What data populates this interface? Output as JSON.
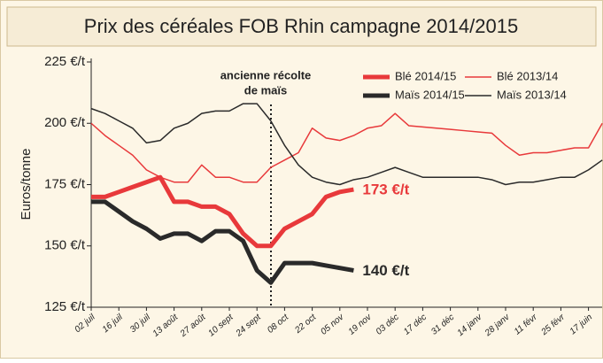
{
  "chart_data": {
    "type": "line",
    "title": "Prix des céréales FOB Rhin campagne 2014/2015",
    "y_label": "Euros/tonne",
    "annotation": [
      "ancienne récolte",
      "de maïs"
    ],
    "categories": [
      "02 juil",
      null,
      "16 juil",
      null,
      "30 juil",
      null,
      "13 août",
      null,
      "27 août",
      null,
      "10 sept",
      null,
      "24 sept",
      null,
      "08 oct",
      null,
      "22 oct",
      null,
      "05 nov",
      null,
      "19 nov",
      null,
      "03 déc",
      null,
      "17 déc",
      null,
      "31 déc",
      null,
      "14 janv",
      null,
      "28 janv",
      null,
      "11 févr",
      null,
      "25 févr",
      null,
      "17 juin",
      null
    ],
    "ylim": [
      125,
      225
    ],
    "yticks": [
      {
        "value": 125,
        "label": "125 €/t"
      },
      {
        "value": 150,
        "label": "150 €/t"
      },
      {
        "value": 175,
        "label": "175 €/t"
      },
      {
        "value": 200,
        "label": "200 €/t"
      },
      {
        "value": 225,
        "label": "225 €/t"
      }
    ],
    "grid": false,
    "series": [
      {
        "name": "Blé 2014/15",
        "color": "#e8393b",
        "width": 5,
        "end_label": "173 €/t",
        "values": [
          170,
          170,
          172,
          174,
          176,
          178,
          168,
          168,
          166,
          166,
          163,
          155,
          150,
          150,
          157,
          160,
          163,
          170,
          172,
          173,
          null,
          null,
          null,
          null,
          null,
          null,
          null,
          null,
          null,
          null,
          null,
          null,
          null,
          null,
          null,
          null,
          null,
          null
        ]
      },
      {
        "name": "Blé 2013/14",
        "color": "#e8393b",
        "width": 1.5,
        "values": [
          200,
          195,
          191,
          187,
          181,
          178,
          176,
          176,
          183,
          178,
          178,
          176,
          176,
          182,
          185,
          188,
          198,
          194,
          193,
          195,
          198,
          199,
          204,
          199,
          198.5,
          198,
          197.5,
          197,
          196.5,
          196,
          191,
          187,
          188,
          188,
          189,
          190,
          190,
          200
        ]
      },
      {
        "name": "Maïs 2014/15",
        "color": "#2a2a2a",
        "width": 5,
        "end_label": "140 €/t",
        "values": [
          168,
          168,
          164,
          160,
          157,
          153,
          155,
          155,
          152,
          156,
          156,
          152,
          140,
          135,
          143,
          143,
          143,
          142,
          141,
          140,
          null,
          null,
          null,
          null,
          null,
          null,
          null,
          null,
          null,
          null,
          null,
          null,
          null,
          null,
          null,
          null,
          null,
          null
        ]
      },
      {
        "name": "Maïs 2013/14",
        "color": "#2a2a2a",
        "width": 1.5,
        "values": [
          206,
          204,
          201,
          198,
          192,
          193,
          198,
          200,
          204,
          205,
          205,
          208,
          208,
          201,
          191,
          183,
          178,
          176,
          175,
          177,
          178,
          180,
          182,
          180,
          178,
          178,
          178,
          178,
          178,
          177,
          175,
          176,
          176,
          177,
          178,
          178,
          181,
          185
        ]
      }
    ]
  }
}
